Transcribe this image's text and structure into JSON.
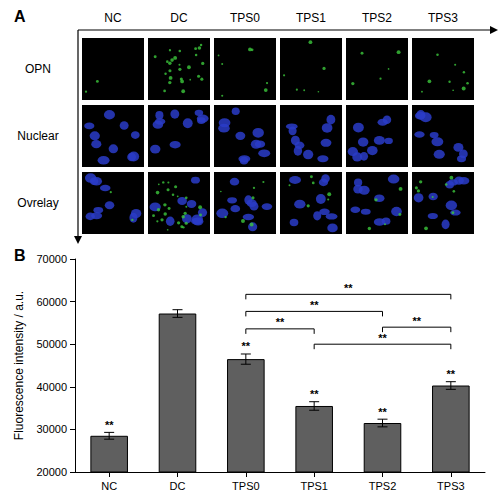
{
  "panel_a": {
    "label": "A",
    "columns": [
      "NC",
      "DC",
      "TPS0",
      "TPS1",
      "TPS2",
      "TPS3"
    ],
    "rows": [
      "OPN",
      "Nuclear",
      "Ovrelay"
    ]
  },
  "chart_data": {
    "type": "bar",
    "panel_label": "B",
    "ylabel": "Fluorescence intensity / a.u.",
    "categories": [
      "NC",
      "DC",
      "TPS0",
      "TPS1",
      "TPS2",
      "TPS3"
    ],
    "values": [
      28500,
      57200,
      46500,
      35500,
      31500,
      40300
    ],
    "errors": [
      800,
      900,
      1200,
      1000,
      900,
      900
    ],
    "color": "#5f5f5f",
    "ylim": [
      20000,
      70000
    ],
    "yticks": [
      20000,
      30000,
      40000,
      50000,
      60000,
      70000
    ],
    "grid": false,
    "significance": [
      "**",
      null,
      "**",
      "**",
      "**",
      "**"
    ],
    "comparisons": [
      {
        "from": "TPS0",
        "to": "TPS3",
        "y": 61700,
        "label": "**"
      },
      {
        "from": "TPS0",
        "to": "TPS2",
        "y": 57700,
        "label": "**"
      },
      {
        "from": "TPS0",
        "to": "TPS1",
        "y": 53600,
        "label": "**"
      },
      {
        "from": "TPS2",
        "to": "TPS3",
        "y": 54000,
        "label": "**"
      },
      {
        "from": "TPS1",
        "to": "TPS3",
        "y": 50000,
        "label": "**"
      }
    ]
  }
}
